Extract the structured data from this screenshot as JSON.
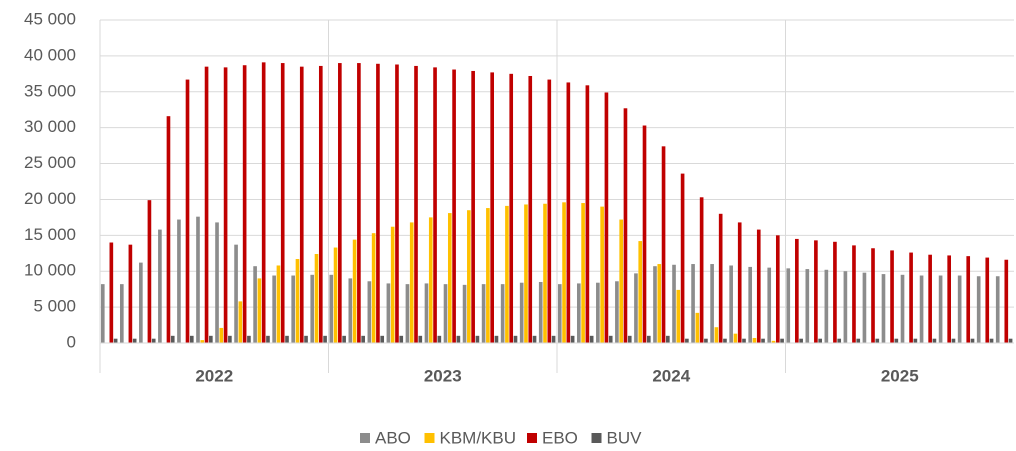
{
  "chart_data": {
    "type": "bar",
    "categories": [
      null,
      null,
      null,
      null,
      null,
      null,
      null,
      null,
      null,
      null,
      null,
      null,
      null,
      null,
      null,
      null,
      null,
      null,
      null,
      null,
      null,
      null,
      null,
      null,
      null,
      null,
      null,
      null,
      null,
      null,
      null,
      null,
      null,
      null,
      null,
      null,
      null,
      null,
      null,
      null,
      null,
      null,
      null,
      null,
      null,
      null,
      null,
      null
    ],
    "year_labels": [
      "2022",
      "2023",
      "2024",
      "2025"
    ],
    "series": [
      {
        "name": "ABO",
        "color": "#8c8c8c",
        "values": [
          8200,
          8200,
          11200,
          15800,
          17200,
          17600,
          16800,
          13700,
          10700,
          9400,
          9400,
          9500,
          9500,
          9000,
          8600,
          8300,
          8200,
          8300,
          8200,
          8100,
          8200,
          8200,
          8400,
          8500,
          8200,
          8300,
          8400,
          8600,
          9700,
          10700,
          10900,
          11000,
          11000,
          10800,
          10600,
          10500,
          10400,
          10300,
          10200,
          10000,
          9800,
          9600,
          9500,
          9400,
          9400,
          9400,
          9300,
          9300
        ]
      },
      {
        "name": "KBM/KBU",
        "color": "#ffc000",
        "values": [
          0,
          0,
          0,
          0,
          0,
          400,
          2100,
          5800,
          9000,
          10800,
          11700,
          12400,
          13300,
          14400,
          15300,
          16200,
          16800,
          17500,
          18100,
          18500,
          18800,
          19100,
          19300,
          19400,
          19600,
          19500,
          19000,
          17200,
          14200,
          11000,
          7400,
          4200,
          2200,
          1300,
          700,
          300,
          0,
          0,
          0,
          0,
          0,
          0,
          0,
          0,
          0,
          0,
          0,
          0
        ]
      },
      {
        "name": "EBO",
        "color": "#c00000",
        "values": [
          14000,
          13700,
          19900,
          31600,
          36700,
          38500,
          38400,
          38700,
          39100,
          39000,
          38500,
          38600,
          39000,
          39000,
          38900,
          38800,
          38600,
          38400,
          38100,
          37900,
          37700,
          37500,
          37200,
          36700,
          36300,
          35900,
          34900,
          32700,
          30300,
          27400,
          23600,
          20300,
          18000,
          16800,
          15800,
          15000,
          14500,
          14300,
          14100,
          13600,
          13200,
          12900,
          12600,
          12300,
          12200,
          12100,
          11900,
          11600
        ]
      },
      {
        "name": "BUV",
        "color": "#595959",
        "values": [
          600,
          600,
          600,
          1000,
          1000,
          1000,
          1000,
          1000,
          1000,
          1000,
          1000,
          1000,
          1000,
          1000,
          1000,
          1000,
          1000,
          1000,
          1000,
          1000,
          1000,
          1000,
          1000,
          1000,
          1000,
          1000,
          1000,
          1000,
          1000,
          1000,
          600,
          600,
          600,
          600,
          600,
          600,
          600,
          600,
          600,
          600,
          600,
          600,
          600,
          600,
          600,
          600,
          600,
          600
        ]
      }
    ],
    "ylim": [
      0,
      45000
    ],
    "yticks": [
      0,
      {
        "value": 5000,
        "label": "5 000"
      },
      {
        "value": 10000,
        "label": "10 000"
      },
      {
        "value": 15000,
        "label": "15 000"
      },
      {
        "value": 20000,
        "label": "20 000"
      },
      {
        "value": 25000,
        "label": "25 000"
      },
      {
        "value": 30000,
        "label": "30 000"
      },
      {
        "value": 35000,
        "label": "35 000"
      },
      {
        "value": 40000,
        "label": "40 000"
      },
      {
        "value": 45000,
        "label": "45 000"
      }
    ],
    "grid": true,
    "legend": "bottom"
  }
}
